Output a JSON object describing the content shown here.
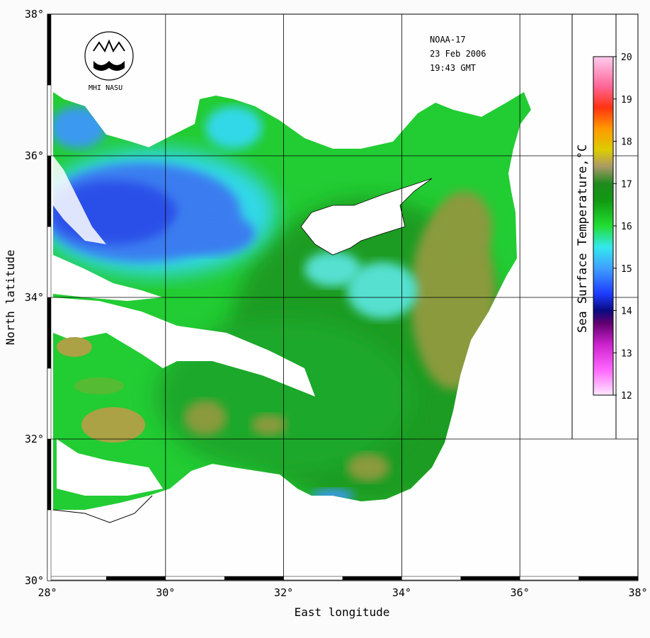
{
  "satellite": "NOAA-17",
  "date": "23 Feb 2006",
  "time": "19:43 GMT",
  "logo_text": "MHI NASU",
  "x_axis": {
    "label": "East longitude",
    "min": 28,
    "max": 38,
    "ticks": [
      {
        "value": 28,
        "label": "28°"
      },
      {
        "value": 30,
        "label": "30°"
      },
      {
        "value": 32,
        "label": "32°"
      },
      {
        "value": 34,
        "label": "34°"
      },
      {
        "value": 36,
        "label": "36°"
      },
      {
        "value": 38,
        "label": "38°"
      }
    ]
  },
  "y_axis": {
    "label": "North latitude",
    "min": 30,
    "max": 38,
    "ticks": [
      {
        "value": 30,
        "label": "30°"
      },
      {
        "value": 32,
        "label": "32°"
      },
      {
        "value": 34,
        "label": "34°"
      },
      {
        "value": 36,
        "label": "36°"
      },
      {
        "value": 38,
        "label": "38°"
      }
    ]
  },
  "colorbar": {
    "title": "Sea Surface Temperature,°C",
    "min": 12,
    "max": 20,
    "labels": [
      "20",
      "19",
      "18",
      "17",
      "16",
      "15",
      "14",
      "13",
      "12"
    ],
    "stops": [
      {
        "value": 12,
        "color": "#ffe8ff"
      },
      {
        "value": 12.6,
        "color": "#ff66ff"
      },
      {
        "value": 13.2,
        "color": "#cc22cc"
      },
      {
        "value": 13.7,
        "color": "#600070"
      },
      {
        "value": 14.0,
        "color": "#0a0a80"
      },
      {
        "value": 14.4,
        "color": "#1e3cff"
      },
      {
        "value": 15.0,
        "color": "#3fa0ff"
      },
      {
        "value": 15.5,
        "color": "#33e8ee"
      },
      {
        "value": 16.0,
        "color": "#22dd33"
      },
      {
        "value": 16.6,
        "color": "#119911"
      },
      {
        "value": 17.0,
        "color": "#1f8a1f"
      },
      {
        "value": 17.4,
        "color": "#aa9966"
      },
      {
        "value": 17.8,
        "color": "#ddcc00"
      },
      {
        "value": 18.3,
        "color": "#ff9900"
      },
      {
        "value": 18.8,
        "color": "#ff3311"
      },
      {
        "value": 19.3,
        "color": "#ff6699"
      },
      {
        "value": 20.0,
        "color": "#ffccee"
      }
    ]
  },
  "colors": {
    "warm_shelf": "#8a9a3c",
    "mid_sea": "#1fbf2f",
    "cool_water": "#3a7df0",
    "cold_core": "#2a4fe8",
    "cloud": "#ffffff",
    "coast": "#000000"
  }
}
